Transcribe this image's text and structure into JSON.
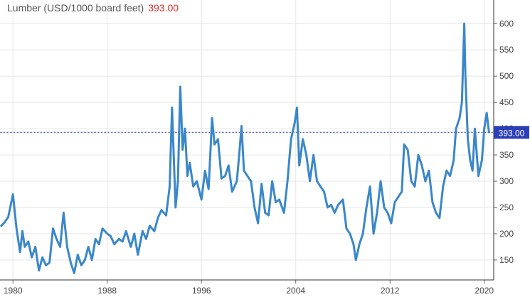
{
  "chart_data": {
    "type": "line",
    "title": "Lumber (USD/1000 board feet)",
    "current_value": "393.00",
    "current_value_label": "393.00",
    "title_value_color": "#d9302b",
    "line_color": "#3a87c9",
    "last_value_badge_color": "#2b3fb8",
    "xlabel": "",
    "ylabel": "",
    "xlim": [
      1978.9,
      2020.8
    ],
    "ylim": [
      112,
      645
    ],
    "grid": true,
    "y_ticks": [
      "150",
      "200",
      "250",
      "300",
      "350",
      "400",
      "450",
      "500",
      "550",
      "600"
    ],
    "x_ticks": [
      "1980",
      "1988",
      "1996",
      "2004",
      "2012",
      "2020"
    ],
    "series": [
      {
        "x": [
          1979.0,
          1979.3,
          1979.6,
          1980.0,
          1980.3,
          1980.6,
          1980.8,
          1981.0,
          1981.3,
          1981.6,
          1981.9,
          1982.2,
          1982.5,
          1982.8,
          1983.1,
          1983.4,
          1983.7,
          1984.0,
          1984.3,
          1984.6,
          1984.9,
          1985.2,
          1985.5,
          1985.8,
          1986.1,
          1986.4,
          1986.7,
          1987.0,
          1987.3,
          1987.6,
          1988.0,
          1988.3,
          1988.6,
          1989.0,
          1989.3,
          1989.6,
          1990.0,
          1990.3,
          1990.6,
          1991.0,
          1991.3,
          1991.6,
          1992.0,
          1992.3,
          1992.6,
          1993.0,
          1993.3,
          1993.5,
          1993.8,
          1994.0,
          1994.2,
          1994.4,
          1994.6,
          1994.8,
          1995.0,
          1995.3,
          1995.6,
          1996.0,
          1996.3,
          1996.6,
          1996.9,
          1997.1,
          1997.4,
          1997.7,
          1998.0,
          1998.3,
          1998.6,
          1999.0,
          1999.2,
          1999.4,
          1999.6,
          1999.9,
          2000.2,
          2000.5,
          2000.8,
          2001.1,
          2001.4,
          2001.7,
          2002.0,
          2002.3,
          2002.6,
          2003.0,
          2003.3,
          2003.6,
          2003.9,
          2004.1,
          2004.3,
          2004.6,
          2004.9,
          2005.2,
          2005.5,
          2005.8,
          2006.1,
          2006.4,
          2006.7,
          2007.0,
          2007.3,
          2007.6,
          2008.0,
          2008.3,
          2008.6,
          2008.9,
          2009.1,
          2009.4,
          2009.7,
          2010.0,
          2010.3,
          2010.6,
          2010.9,
          2011.2,
          2011.5,
          2011.8,
          2012.1,
          2012.4,
          2012.7,
          2013.0,
          2013.2,
          2013.5,
          2013.8,
          2014.1,
          2014.4,
          2014.7,
          2015.0,
          2015.3,
          2015.6,
          2015.9,
          2016.2,
          2016.5,
          2016.8,
          2017.1,
          2017.4,
          2017.6,
          2017.9,
          2018.1,
          2018.3,
          2018.4,
          2018.6,
          2018.8,
          2019.0,
          2019.2,
          2019.5,
          2019.8,
          2020.0,
          2020.2,
          2020.4
        ],
        "y": [
          215,
          222,
          232,
          275,
          210,
          165,
          205,
          175,
          185,
          155,
          175,
          130,
          155,
          140,
          145,
          210,
          190,
          175,
          240,
          175,
          145,
          125,
          160,
          140,
          150,
          175,
          150,
          190,
          180,
          210,
          200,
          195,
          180,
          190,
          185,
          205,
          175,
          200,
          160,
          205,
          190,
          215,
          205,
          230,
          245,
          235,
          290,
          440,
          250,
          300,
          480,
          360,
          400,
          310,
          335,
          290,
          300,
          265,
          320,
          285,
          420,
          370,
          380,
          305,
          310,
          330,
          280,
          300,
          350,
          405,
          320,
          310,
          300,
          250,
          220,
          295,
          240,
          235,
          300,
          260,
          265,
          240,
          300,
          380,
          410,
          440,
          330,
          380,
          350,
          300,
          350,
          300,
          290,
          280,
          250,
          255,
          240,
          255,
          265,
          210,
          200,
          180,
          150,
          180,
          200,
          250,
          290,
          200,
          240,
          300,
          250,
          240,
          220,
          260,
          270,
          280,
          370,
          360,
          300,
          290,
          350,
          330,
          300,
          320,
          260,
          240,
          230,
          290,
          320,
          310,
          340,
          400,
          420,
          450,
          600,
          500,
          380,
          340,
          320,
          400,
          310,
          340,
          400,
          430,
          393
        ]
      }
    ]
  }
}
